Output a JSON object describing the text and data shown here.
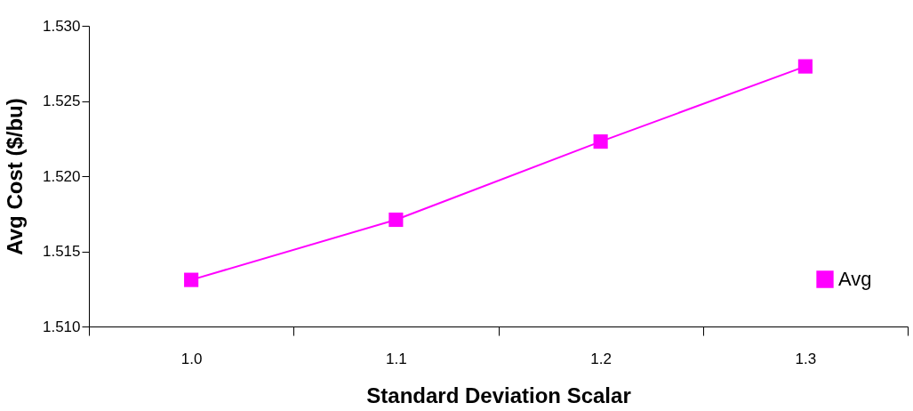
{
  "chart_data": {
    "type": "line",
    "xlabel": "Standard  Deviation Scalar",
    "ylabel": "Avg Cost  ($/bu)",
    "categories": [
      "1.0",
      "1.1",
      "1.2",
      "1.3"
    ],
    "series": [
      {
        "name": "Avg",
        "color": "#ff00ff",
        "values": [
          1.5131,
          1.5171,
          1.5223,
          1.5273
        ]
      }
    ],
    "ylim": [
      1.51,
      1.53
    ],
    "yticks": [
      {
        "value": 1.51,
        "label": "1.510"
      },
      {
        "value": 1.515,
        "label": "1.515"
      },
      {
        "value": 1.52,
        "label": "1.520"
      },
      {
        "value": 1.525,
        "label": "1.525"
      },
      {
        "value": 1.53,
        "label": "1.530"
      }
    ],
    "grid": false,
    "legend": "bottom right",
    "marker": "square",
    "line_style": "solid"
  }
}
